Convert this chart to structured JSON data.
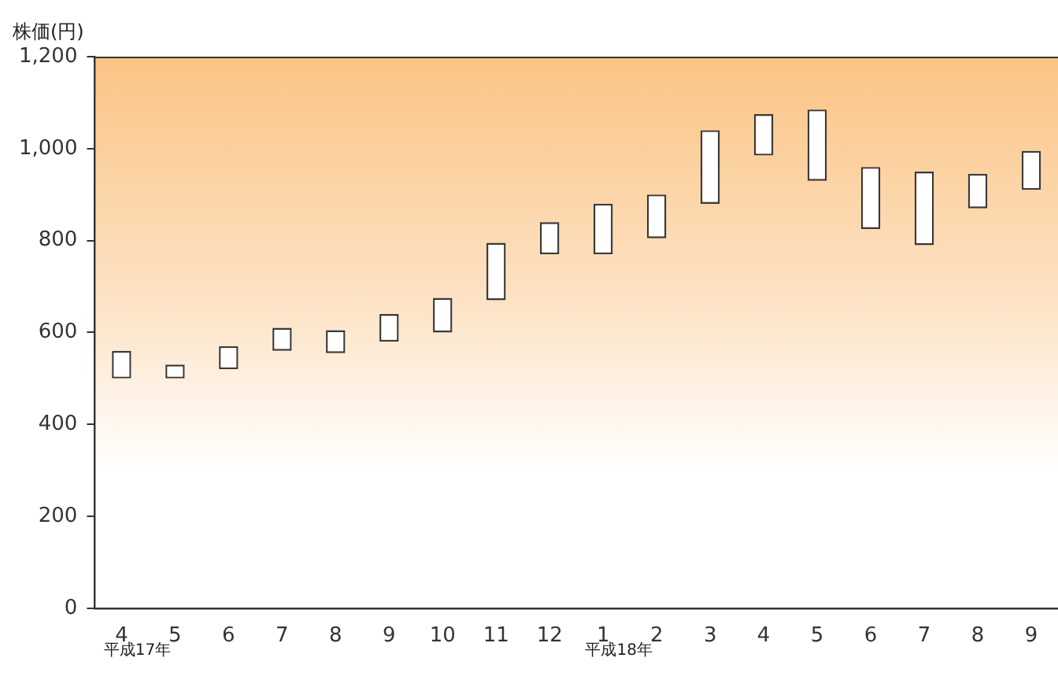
{
  "chart_data": {
    "type": "bar",
    "ylabel": "株価(円)",
    "categories": [
      "4",
      "5",
      "6",
      "7",
      "8",
      "9",
      "10",
      "11",
      "12",
      "1",
      "2",
      "3",
      "4",
      "5",
      "6",
      "7",
      "8",
      "9"
    ],
    "base": [
      500,
      500,
      520,
      560,
      555,
      580,
      600,
      670,
      770,
      770,
      805,
      880,
      985,
      930,
      825,
      790,
      870,
      910
    ],
    "values": [
      60,
      30,
      50,
      50,
      50,
      60,
      75,
      125,
      70,
      110,
      95,
      160,
      90,
      155,
      135,
      160,
      75,
      85
    ],
    "color": "#ffffff",
    "ylim": [
      0,
      1200
    ],
    "yticks": [
      0,
      200,
      400,
      600,
      800,
      {
        "value": 1000,
        "label": "1,000"
      },
      {
        "value": 1200,
        "label": "1,200"
      }
    ],
    "annotations": [
      "平成17年",
      "平成18年"
    ]
  }
}
